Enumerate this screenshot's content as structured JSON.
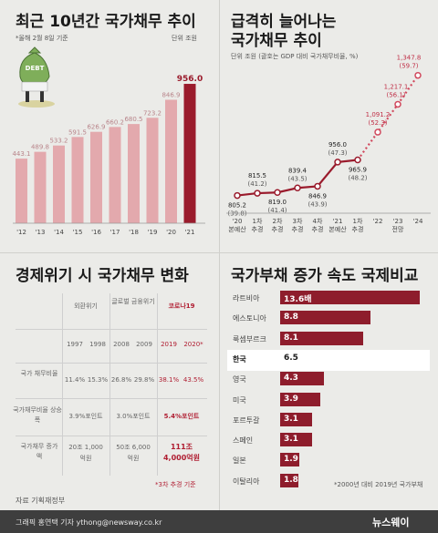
{
  "panel1": {
    "title": "최근 10년간 국가채무 추이",
    "note": "*올해 2월 8일 기준",
    "unit": "단위 조원",
    "chart_data": {
      "type": "bar",
      "categories": [
        "'12",
        "'13",
        "'14",
        "'15",
        "'16",
        "'17",
        "'18",
        "'19",
        "'20",
        "'21"
      ],
      "values": [
        443.1,
        489.8,
        533.2,
        591.5,
        626.9,
        660.2,
        680.5,
        723.2,
        846.9,
        956.0
      ],
      "value_labels": [
        "443.1",
        "489.8",
        "533.2",
        "591.5",
        "626.9",
        "660.2",
        "680.5",
        "723.2",
        "846.9",
        "956.0"
      ],
      "colors": [
        "#e3a9ad",
        "#e3a9ad",
        "#e3a9ad",
        "#e3a9ad",
        "#e3a9ad",
        "#e3a9ad",
        "#e3a9ad",
        "#e3a9ad",
        "#e3a9ad",
        "#9a1b2c"
      ],
      "ylim": [
        0,
        1000
      ]
    },
    "illustration_text": "DEBT"
  },
  "panel2": {
    "title_line1": "급격히 늘어나는",
    "title_line2": "국가채무 추이",
    "unit": "단위 조원 (괄호는 GDP 대비 국가채무비율, %)",
    "chart_data": {
      "type": "line",
      "x": [
        "'20 본예산",
        "1차 추경",
        "2차 추경",
        "3차 추경",
        "4차 추경",
        "'21 본예산",
        "1차 추경",
        "'22",
        "'23",
        "'24"
      ],
      "x_top": [
        "'20",
        "1차",
        "2차",
        "3차",
        "4차",
        "'21",
        "1차",
        "'22",
        "'23",
        "'24"
      ],
      "x_bottom": [
        "본예산",
        "추경",
        "추경",
        "추경",
        "추경",
        "본예산",
        "추경",
        "",
        "전망",
        ""
      ],
      "values": [
        805.2,
        815.5,
        819.0,
        839.4,
        846.9,
        956.0,
        965.9,
        1091.2,
        1217.1,
        1347.8
      ],
      "ratios": [
        "39.8",
        "41.2",
        "41.4",
        "43.5",
        "43.9",
        "47.3",
        "48.2",
        "52.3",
        "56.1",
        "59.7"
      ],
      "value_labels": [
        "805.2",
        "815.5",
        "819.0",
        "839.4",
        "846.9",
        "956.0",
        "965.9",
        "1,091.2",
        "1,217.1",
        "1,347.8"
      ],
      "ratio_labels": [
        "(39.8)",
        "(41.2)",
        "(41.4)",
        "(43.5)",
        "(43.9)",
        "(47.3)",
        "(48.2)",
        "(52.3)",
        "(56.1)",
        "(59.7)"
      ],
      "solid_until_index": 6,
      "ylim": [
        750,
        1400
      ],
      "colors": {
        "solid": "#9a1b2c",
        "dotted": "#d14a5e",
        "value": "#222222",
        "ratio": "#555555",
        "forecast": "#c03048"
      }
    }
  },
  "panel3": {
    "title": "경제위기 시 국가채무 변화",
    "groups": [
      "외환위기",
      "글로벌 금융위기",
      "코로나19"
    ],
    "years": [
      "1997",
      "1998",
      "2008",
      "2009",
      "2019",
      "2020*"
    ],
    "rows": [
      {
        "label": "국가 채무비율",
        "values": [
          "11.4%",
          "15.3%",
          "26.8%",
          "29.8%",
          "38.1%",
          "43.5%"
        ]
      },
      {
        "label": "국가채무비율 상승폭",
        "values": [
          "3.9%포인트",
          "3.0%포인트",
          "5.4%포인트"
        ]
      },
      {
        "label": "국가채무 증가액",
        "values": [
          "20조 1,000억원",
          "50조 6,000억원",
          "111조 4,000억원"
        ]
      }
    ],
    "footnote": "*3차 추경 기준",
    "source": "자료 기획재정부"
  },
  "panel4": {
    "title": "국가부채 증가 속도 국제비교",
    "chart_data": {
      "type": "bar",
      "orientation": "horizontal",
      "categories": [
        "라트비아",
        "에스토니아",
        "룩셈부르크",
        "한국",
        "영국",
        "미국",
        "포르투갈",
        "스페인",
        "일본",
        "이탈리아"
      ],
      "values": [
        13.6,
        8.8,
        8.1,
        6.5,
        4.3,
        3.9,
        3.1,
        3.1,
        1.9,
        1.8
      ],
      "value_labels": [
        "13.6배",
        "8.8",
        "8.1",
        "6.5",
        "4.3",
        "3.9",
        "3.1",
        "3.1",
        "1.9",
        "1.8"
      ],
      "highlight": "한국",
      "colors": {
        "bar": "#8e1d2c",
        "highlight_bg": "#ffffff",
        "highlight_text": "#1a1a1a"
      }
    },
    "note": "*2000년 대비 2019년 국가부채"
  },
  "footer": {
    "credit": "그래픽 홍연택 기자 ythong@newsway.co.kr",
    "logo": "뉴스웨이"
  }
}
